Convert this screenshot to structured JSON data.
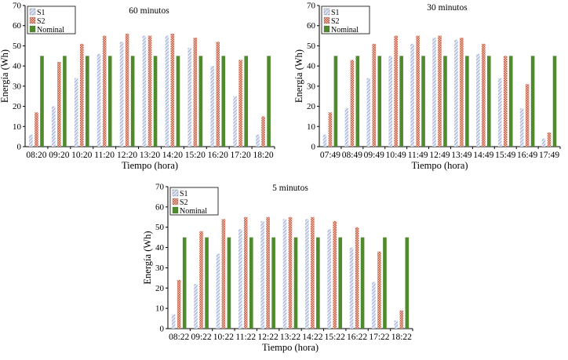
{
  "colors": {
    "s1": "#a9b6d6",
    "s2": "#cf6f58",
    "nominal": "#4f8a2c",
    "axis": "#000000",
    "background": "#ffffff"
  },
  "chart_data": [
    {
      "type": "bar",
      "title": "60 minutos",
      "xlabel": "Tiempo (hora)",
      "ylabel": "Energía (Wh)",
      "ylim": [
        0,
        70
      ],
      "yticks": [
        0,
        10,
        20,
        30,
        40,
        50,
        60,
        70
      ],
      "legend_position": "top-left",
      "categories": [
        "08:20",
        "09:20",
        "10:20",
        "11:20",
        "12:20",
        "13:20",
        "14:20",
        "15:20",
        "16:20",
        "17:20",
        "18:20"
      ],
      "series": [
        {
          "name": "S1",
          "values": [
            6,
            20,
            34,
            46,
            52,
            55,
            55,
            49,
            40,
            25,
            6
          ]
        },
        {
          "name": "S2",
          "values": [
            17,
            42,
            51,
            55,
            56,
            55,
            56,
            54,
            52,
            43,
            15
          ]
        },
        {
          "name": "Nominal",
          "values": [
            45,
            45,
            45,
            45,
            45,
            45,
            45,
            45,
            45,
            45,
            45
          ]
        }
      ]
    },
    {
      "type": "bar",
      "title": "30 minutos",
      "xlabel": "Tiempo (hora)",
      "ylabel": "Energía (Wh)",
      "ylim": [
        0,
        70
      ],
      "yticks": [
        0,
        10,
        20,
        30,
        40,
        50,
        60,
        70
      ],
      "legend_position": "top-left",
      "categories": [
        "07:49",
        "08:49",
        "09:49",
        "10:49",
        "11:49",
        "12:49",
        "13:49",
        "14:49",
        "15:49",
        "16:49",
        "17:49"
      ],
      "series": [
        {
          "name": "S1",
          "values": [
            6,
            19,
            34,
            45,
            51,
            54,
            53,
            46,
            34,
            19,
            4
          ]
        },
        {
          "name": "S2",
          "values": [
            17,
            43,
            51,
            55,
            55,
            55,
            54,
            51,
            45,
            31,
            7
          ]
        },
        {
          "name": "Nominal",
          "values": [
            45,
            45,
            45,
            45,
            45,
            45,
            45,
            45,
            45,
            45,
            45
          ]
        }
      ]
    },
    {
      "type": "bar",
      "title": "5 minutos",
      "xlabel": "Tiempo (hora)",
      "ylabel": "Energía (Wh)",
      "ylim": [
        0,
        70
      ],
      "yticks": [
        0,
        10,
        20,
        30,
        40,
        50,
        60,
        70
      ],
      "legend_position": "top-left",
      "categories": [
        "08:22",
        "09:22",
        "10:22",
        "11:22",
        "12:22",
        "13:22",
        "14:22",
        "15:22",
        "16:22",
        "17:22",
        "18:22"
      ],
      "series": [
        {
          "name": "S1",
          "values": [
            7,
            22,
            37,
            49,
            53,
            54,
            54,
            49,
            40,
            23,
            4
          ]
        },
        {
          "name": "S2",
          "values": [
            24,
            48,
            54,
            55,
            55,
            55,
            55,
            53,
            50,
            38,
            9
          ]
        },
        {
          "name": "Nominal",
          "values": [
            45,
            45,
            45,
            45,
            45,
            45,
            45,
            45,
            45,
            45,
            45
          ]
        }
      ]
    }
  ]
}
